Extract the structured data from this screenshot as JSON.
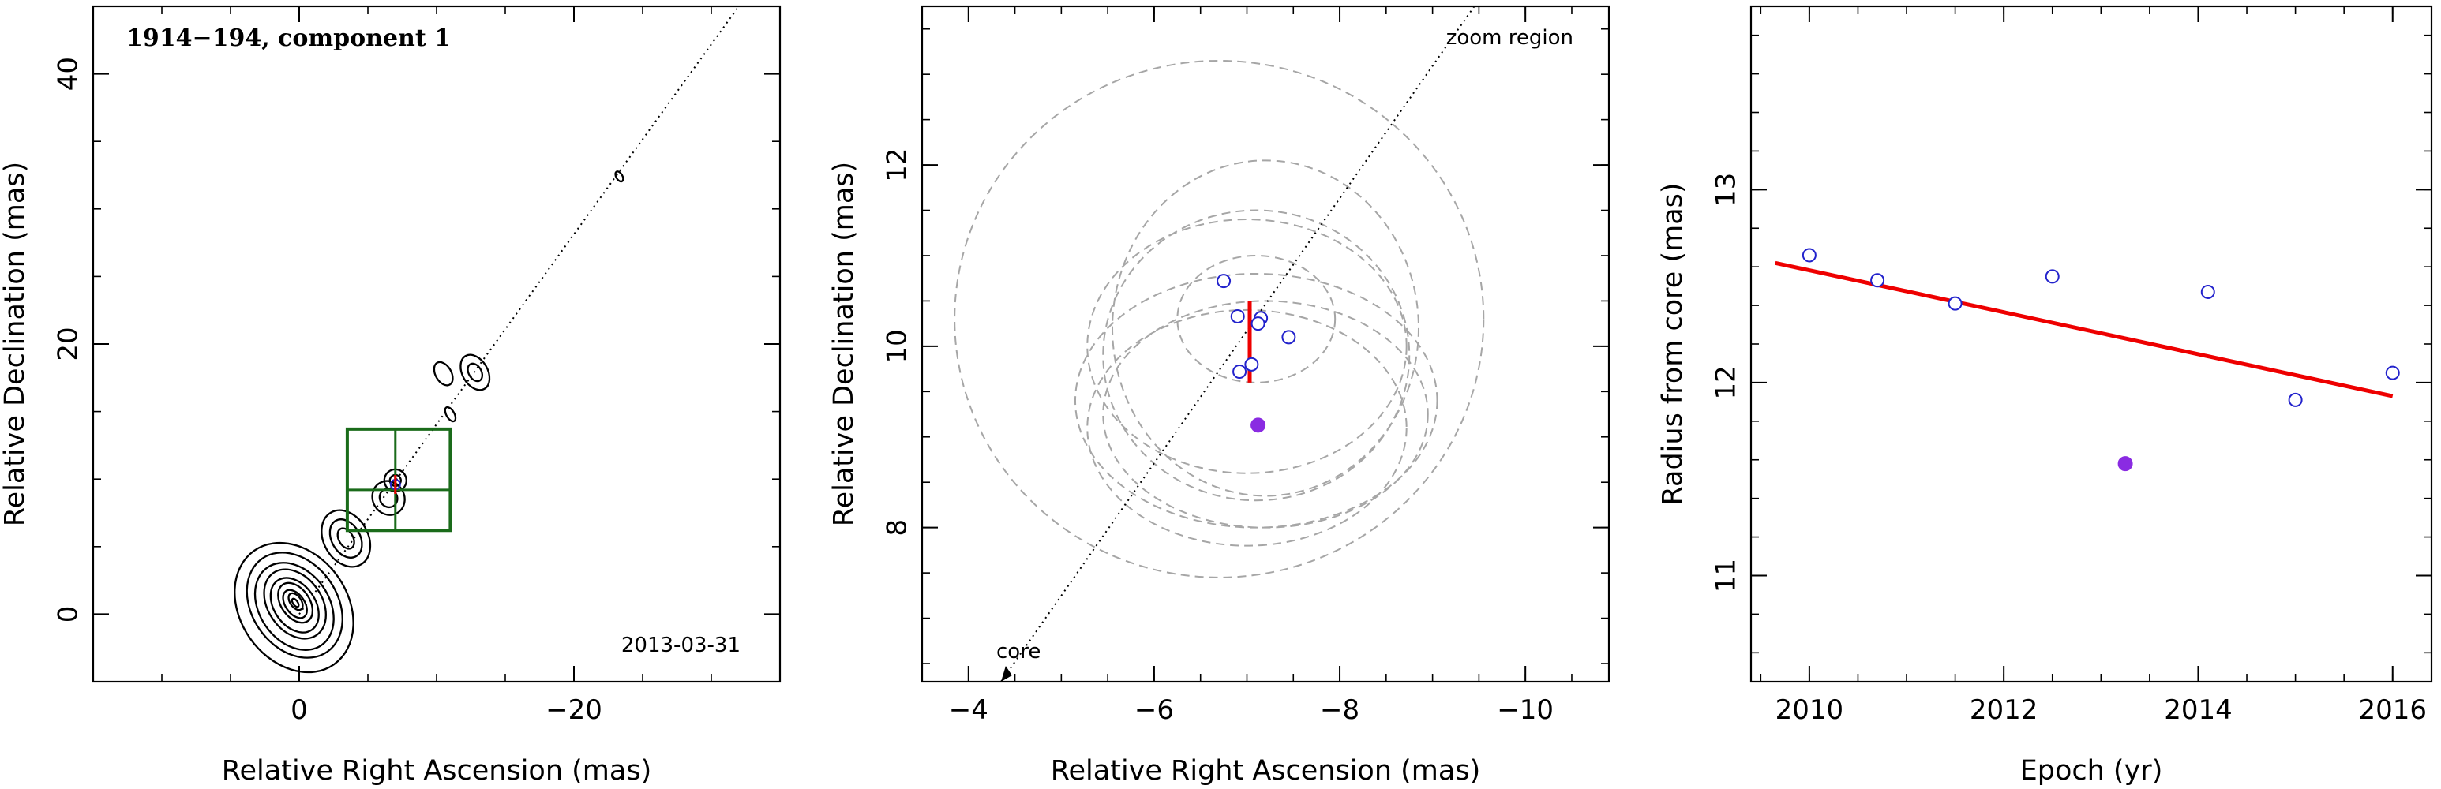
{
  "chart_data": [
    {
      "type": "contour",
      "title": "1914−194, component 1",
      "annotation": "2013-03-31",
      "xlabel": "Relative Right Ascension (mas)",
      "ylabel": "Relative Declination (mas)",
      "xlim": [
        15,
        -35
      ],
      "ylim": [
        -5,
        45
      ],
      "x_ticks": [
        0,
        -20
      ],
      "x_tick_labels": [
        "0",
        "−20"
      ],
      "y_ticks": [
        0,
        20,
        40
      ],
      "y_tick_labels": [
        "0",
        "20",
        "40"
      ],
      "trajectory_line": {
        "x": [
          0,
          -32
        ],
        "y": [
          0,
          45
        ]
      },
      "zoom_box": {
        "x": [
          -3.5,
          -11
        ],
        "y": [
          6.2,
          13.7
        ]
      },
      "component_position": {
        "x": -7,
        "y": 9.6
      },
      "grid": false
    },
    {
      "type": "scatter",
      "annotation_top": "zoom region",
      "annotation_bottom": "core",
      "xlabel": "Relative Right Ascension (mas)",
      "ylabel": "Relative Declination (mas)",
      "xlim": [
        -3.5,
        -10.9
      ],
      "ylim": [
        6.3,
        13.75
      ],
      "x_ticks": [
        -4,
        -6,
        -8,
        -10
      ],
      "x_tick_labels": [
        "−4",
        "−6",
        "−8",
        "−10"
      ],
      "y_ticks": [
        8,
        10,
        12
      ],
      "y_tick_labels": [
        "8",
        "10",
        "12"
      ],
      "series": [
        {
          "style": "open-circle",
          "color": "#2222cc",
          "points": [
            [
              -6.75,
              10.72
            ],
            [
              -6.9,
              10.33
            ],
            [
              -7.15,
              10.31
            ],
            [
              -7.12,
              10.25
            ],
            [
              -7.45,
              10.1
            ],
            [
              -7.05,
              9.8
            ],
            [
              -6.92,
              9.72
            ]
          ]
        },
        {
          "style": "filled-circle",
          "color": "#8a2be2",
          "points": [
            [
              -7.12,
              9.13
            ]
          ]
        }
      ],
      "error_bar": {
        "x": -7.03,
        "y": [
          9.6,
          10.5
        ],
        "color": "#ee0000"
      },
      "beam_ellipses": [
        {
          "cx": -6.7,
          "cy": 10.3,
          "rx": 2.85,
          "ry": 2.85
        },
        {
          "cx": -7.2,
          "cy": 10.2,
          "rx": 1.65,
          "ry": 1.85
        },
        {
          "cx": -7.0,
          "cy": 10.0,
          "rx": 1.72,
          "ry": 1.4
        },
        {
          "cx": -7.1,
          "cy": 9.9,
          "rx": 1.65,
          "ry": 1.6
        },
        {
          "cx": -7.1,
          "cy": 9.4,
          "rx": 1.95,
          "ry": 1.4
        },
        {
          "cx": -7.2,
          "cy": 9.25,
          "rx": 1.75,
          "ry": 1.25
        },
        {
          "cx": -7.0,
          "cy": 9.1,
          "rx": 1.72,
          "ry": 1.3
        },
        {
          "cx": -7.1,
          "cy": 10.3,
          "rx": 0.85,
          "ry": 0.7
        }
      ],
      "trajectory_line": {
        "x": [
          -4.35,
          -9.45
        ],
        "y": [
          6.3,
          13.75
        ]
      },
      "grid": false
    },
    {
      "type": "scatter",
      "xlabel": "Epoch (yr)",
      "ylabel": "Radius from core (mas)",
      "xlim": [
        2009.4,
        2016.4
      ],
      "ylim": [
        10.45,
        13.95
      ],
      "x_ticks": [
        2010,
        2012,
        2014,
        2016
      ],
      "x_tick_labels": [
        "2010",
        "2012",
        "2014",
        "2016"
      ],
      "y_ticks": [
        11,
        12,
        13
      ],
      "y_tick_labels": [
        "11",
        "12",
        "13"
      ],
      "series": [
        {
          "style": "open-circle",
          "color": "#2222cc",
          "x": [
            2010.0,
            2010.7,
            2011.5,
            2012.5,
            2014.1,
            2015.0,
            2016.0
          ],
          "y": [
            12.66,
            12.53,
            12.41,
            12.55,
            12.47,
            11.91,
            12.05
          ]
        },
        {
          "style": "filled-circle",
          "color": "#8a2be2",
          "x": [
            2013.25
          ],
          "y": [
            11.58
          ]
        }
      ],
      "fit_line": {
        "x": [
          2009.65,
          2016.0
        ],
        "y": [
          12.62,
          11.93
        ],
        "color": "#ee0000"
      },
      "grid": false
    }
  ]
}
